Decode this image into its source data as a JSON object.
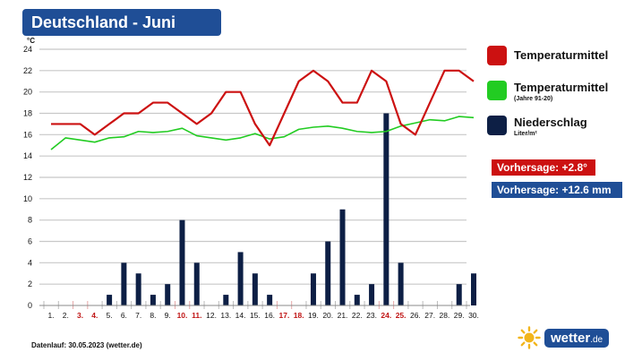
{
  "header": {
    "title": "Deutschland - Juni"
  },
  "chart_data": {
    "type": "line+bar",
    "ylabel": "°C",
    "ylim": [
      0,
      24
    ],
    "yticks": [
      0,
      2,
      4,
      6,
      8,
      10,
      12,
      14,
      16,
      18,
      20,
      22,
      24
    ],
    "grid": true,
    "categories": [
      "1.",
      "2.",
      "3.",
      "4.",
      "5.",
      "6.",
      "7.",
      "8.",
      "9.",
      "10.",
      "11.",
      "12.",
      "13.",
      "14.",
      "15.",
      "16.",
      "17.",
      "18.",
      "19.",
      "20.",
      "21.",
      "22.",
      "23.",
      "24.",
      "25.",
      "26.",
      "27.",
      "28.",
      "29.",
      "30."
    ],
    "highlighted_days": [
      "3.",
      "4.",
      "10.",
      "11.",
      "17.",
      "18.",
      "24.",
      "25."
    ],
    "series": [
      {
        "name": "Temperaturmittel",
        "type": "line",
        "color": "#cc1111",
        "values": [
          17,
          17,
          17,
          16,
          17,
          18,
          18,
          19,
          19,
          18,
          17,
          18,
          20,
          20,
          17,
          15,
          18,
          21,
          22,
          21,
          19,
          19,
          22,
          21,
          17,
          16,
          19,
          22,
          22,
          21
        ]
      },
      {
        "name": "Temperaturmittel",
        "subname": "(Jahre 91-20)",
        "type": "line",
        "color": "#22cc22",
        "values": [
          14.6,
          15.7,
          15.5,
          15.3,
          15.7,
          15.8,
          16.3,
          16.2,
          16.3,
          16.6,
          15.9,
          15.7,
          15.5,
          15.7,
          16.1,
          15.6,
          15.8,
          16.5,
          16.7,
          16.8,
          16.6,
          16.3,
          16.2,
          16.3,
          16.8,
          17.1,
          17.4,
          17.3,
          17.7,
          17.6
        ]
      },
      {
        "name": "Niederschlag",
        "subname": "Liter/m²",
        "type": "bar",
        "color": "#0d1f45",
        "values": [
          0,
          0,
          0,
          0,
          1,
          4,
          3,
          1,
          2,
          8,
          4,
          0,
          1,
          5,
          3,
          1,
          0,
          0,
          3,
          6,
          9,
          1,
          2,
          18,
          4,
          0,
          0,
          0,
          2,
          3
        ]
      }
    ]
  },
  "forecast": [
    {
      "label": "Vorhersage: +2.8°",
      "color": "#cc1111"
    },
    {
      "label": "Vorhersage: +12.6 mm",
      "color": "#1f4e96"
    }
  ],
  "footer": {
    "text": "Datenlauf: 30.05.2023 (wetter.de)"
  },
  "logo": {
    "name": "wetter",
    "tld": ".de"
  },
  "icons": {
    "logo_icon": "sun-icon"
  }
}
